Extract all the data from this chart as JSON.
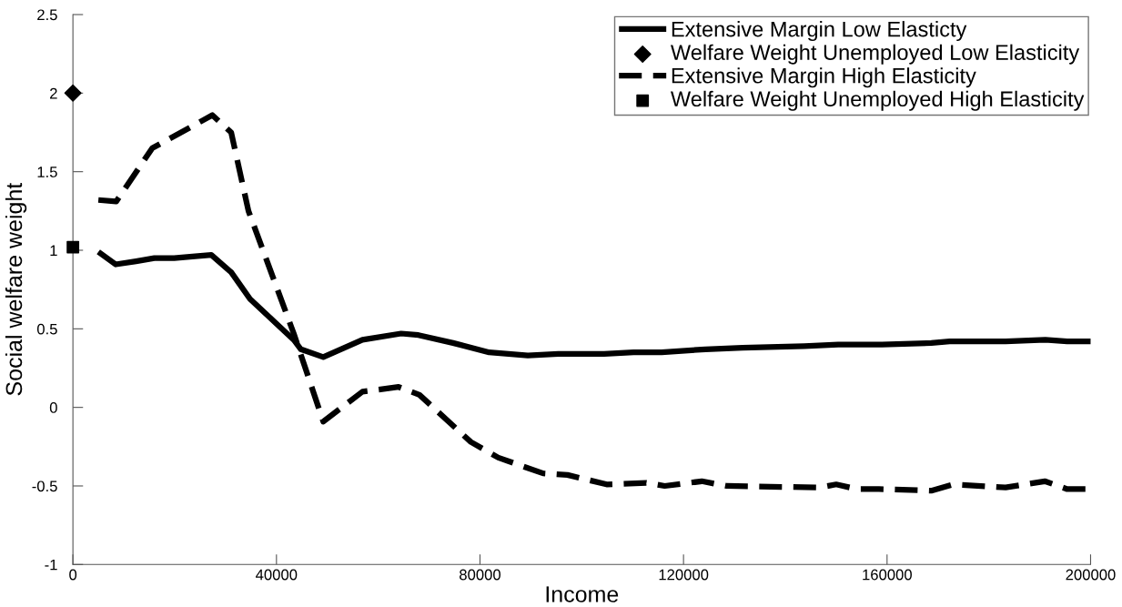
{
  "chart_data": {
    "type": "line",
    "xlabel": "Income",
    "ylabel": "Social welfare weight",
    "xlim": [
      0,
      200000
    ],
    "xticks": [
      0,
      40000,
      80000,
      120000,
      160000,
      200000
    ],
    "ylim": [
      -1,
      2.5
    ],
    "yticks": [
      -1,
      -0.5,
      0,
      0.5,
      1,
      1.5,
      2,
      2.5
    ],
    "grid": false,
    "legend": "top right",
    "series": [
      {
        "name": "Extensive Margin Low Elasticty",
        "line_style": "solid",
        "color": "#000000",
        "x": [
          5000,
          8400,
          12400,
          16000,
          19900,
          23500,
          27200,
          31100,
          34800,
          43400,
          44800,
          49200,
          56900,
          64500,
          67900,
          74700,
          81800,
          89400,
          95400,
          104400,
          110200,
          115700,
          124300,
          131600,
          143700,
          150400,
          159000,
          168700,
          172300,
          183300,
          191100,
          195400,
          200000
        ],
        "values": [
          0.99,
          0.91,
          0.93,
          0.95,
          0.95,
          0.96,
          0.97,
          0.86,
          0.69,
          0.43,
          0.37,
          0.32,
          0.43,
          0.47,
          0.46,
          0.41,
          0.35,
          0.33,
          0.34,
          0.34,
          0.35,
          0.35,
          0.37,
          0.38,
          0.39,
          0.4,
          0.4,
          0.41,
          0.42,
          0.42,
          0.43,
          0.42,
          0.42
        ]
      },
      {
        "name": "Welfare Weight Unemployed Low Elasticity",
        "type": "scatter",
        "marker": "diamond",
        "color": "#000000",
        "x": [
          0
        ],
        "values": [
          2.0
        ]
      },
      {
        "name": "Extensive Margin High Elasticity",
        "line_style": "dashed",
        "color": "#000000",
        "x": [
          5000,
          8500,
          15600,
          27400,
          31100,
          34500,
          43400,
          49200,
          56900,
          64000,
          68100,
          78200,
          83600,
          92400,
          97200,
          104900,
          112700,
          116300,
          123600,
          128500,
          146700,
          150000,
          154100,
          158400,
          168700,
          173000,
          183300,
          191000,
          195400,
          200000
        ],
        "values": [
          1.32,
          1.31,
          1.65,
          1.86,
          1.75,
          1.25,
          0.47,
          -0.09,
          0.1,
          0.13,
          0.08,
          -0.22,
          -0.32,
          -0.42,
          -0.43,
          -0.49,
          -0.48,
          -0.5,
          -0.47,
          -0.5,
          -0.51,
          -0.49,
          -0.52,
          -0.52,
          -0.53,
          -0.49,
          -0.51,
          -0.47,
          -0.52,
          -0.52
        ]
      },
      {
        "name": "Welfare Weight Unemployed High Elasticity",
        "type": "scatter",
        "marker": "square",
        "color": "#000000",
        "x": [
          0
        ],
        "values": [
          1.02
        ]
      }
    ]
  }
}
